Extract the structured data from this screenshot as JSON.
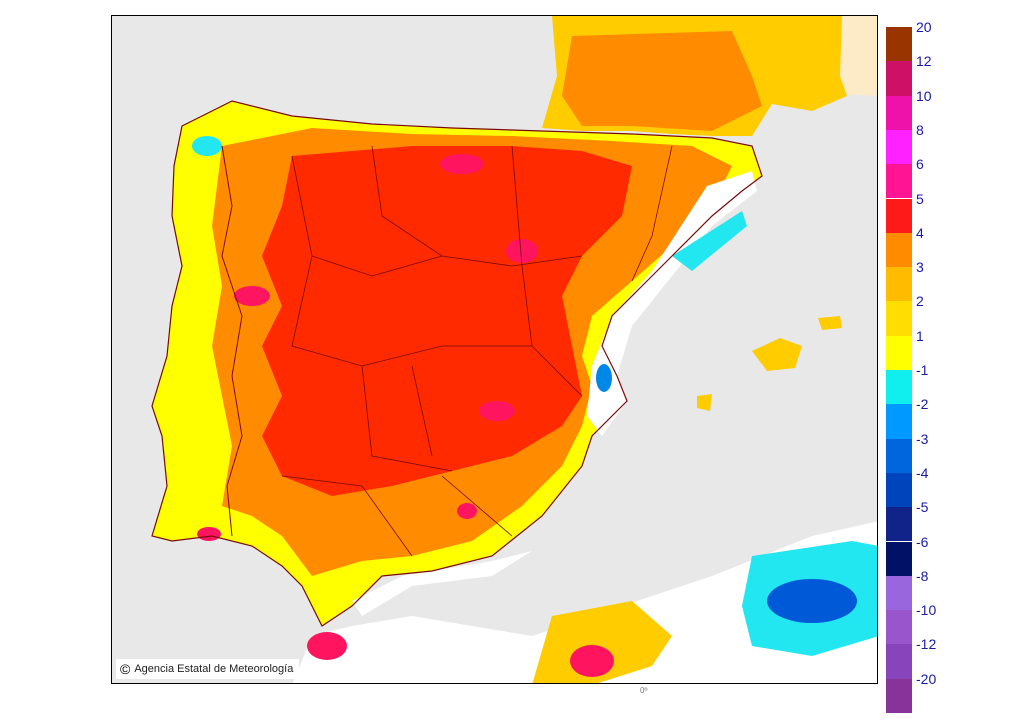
{
  "credit": {
    "icon": "copyright-icon",
    "symbol": "©",
    "text": "Agencia Estatal de Meteorología"
  },
  "bottom_axis_label": "0º",
  "colors": {
    "sea": "#e8e8e8",
    "land_white": "#ffffff",
    "anom_1": "#ffff00",
    "anom_2": "#ffcc00",
    "anom_3": "#ff8c00",
    "anom_4": "#ff2a00",
    "anom_5": "#ff1460",
    "france_land": "#fdebc8",
    "cold_1": "#22e6f0",
    "cold_2": "#0088e8",
    "cold_3": "#005ad8",
    "borders": "#7a0a0a"
  },
  "legend": {
    "warm": [
      {
        "label": "20",
        "color": "#993300"
      },
      {
        "label": "12",
        "color": "#cc1166"
      },
      {
        "label": "10",
        "color": "#ee11aa"
      },
      {
        "label": "8",
        "color": "#ff22ff"
      },
      {
        "label": "6",
        "color": "#ff1493"
      },
      {
        "label": "5",
        "color": "#ff1a1a"
      },
      {
        "label": "4",
        "color": "#ff8c00"
      },
      {
        "label": "3",
        "color": "#ffbb00"
      },
      {
        "label": "2",
        "color": "#ffdd00"
      },
      {
        "label": "1",
        "color": "#ffff00"
      }
    ],
    "cold": [
      {
        "label": "-1",
        "color": "#11eeee"
      },
      {
        "label": "-2",
        "color": "#0099ff"
      },
      {
        "label": "-3",
        "color": "#0066dd"
      },
      {
        "label": "-4",
        "color": "#0044bb"
      },
      {
        "label": "-5",
        "color": "#112288"
      },
      {
        "label": "-6",
        "color": "#001166"
      },
      {
        "label": "-8",
        "color": "#9966dd"
      },
      {
        "label": "-10",
        "color": "#9955cc"
      },
      {
        "label": "-12",
        "color": "#8844bb"
      },
      {
        "label": "-20",
        "color": "#883399"
      }
    ]
  }
}
